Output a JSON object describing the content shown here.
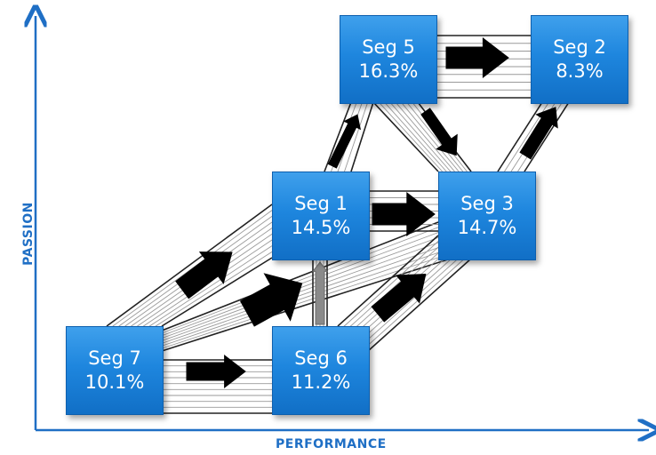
{
  "axes": {
    "x_label": "PERFORMANCE",
    "y_label": "PASSION"
  },
  "colors": {
    "axis": "#1f6fc5",
    "box": "#1e86de",
    "arrow": "#000000",
    "flow_line": "#9a9a9a"
  },
  "segments": [
    {
      "id": "seg5",
      "name": "Seg 5",
      "share": "16.3%"
    },
    {
      "id": "seg2",
      "name": "Seg 2",
      "share": "8.3%"
    },
    {
      "id": "seg1",
      "name": "Seg 1",
      "share": "14.5%"
    },
    {
      "id": "seg3",
      "name": "Seg 3",
      "share": "14.7%"
    },
    {
      "id": "seg7",
      "name": "Seg 7",
      "share": "10.1%"
    },
    {
      "id": "seg6",
      "name": "Seg 6",
      "share": "11.2%"
    }
  ],
  "flows": [
    {
      "from": "Seg 7",
      "to": "Seg 6"
    },
    {
      "from": "Seg 7",
      "to": "Seg 1"
    },
    {
      "from": "Seg 7",
      "to": "Seg 3"
    },
    {
      "from": "Seg 6",
      "to": "Seg 1"
    },
    {
      "from": "Seg 6",
      "to": "Seg 3"
    },
    {
      "from": "Seg 1",
      "to": "Seg 3"
    },
    {
      "from": "Seg 1",
      "to": "Seg 5"
    },
    {
      "from": "Seg 5",
      "to": "Seg 2"
    },
    {
      "from": "Seg 5",
      "to": "Seg 3"
    },
    {
      "from": "Seg 3",
      "to": "Seg 2"
    }
  ]
}
